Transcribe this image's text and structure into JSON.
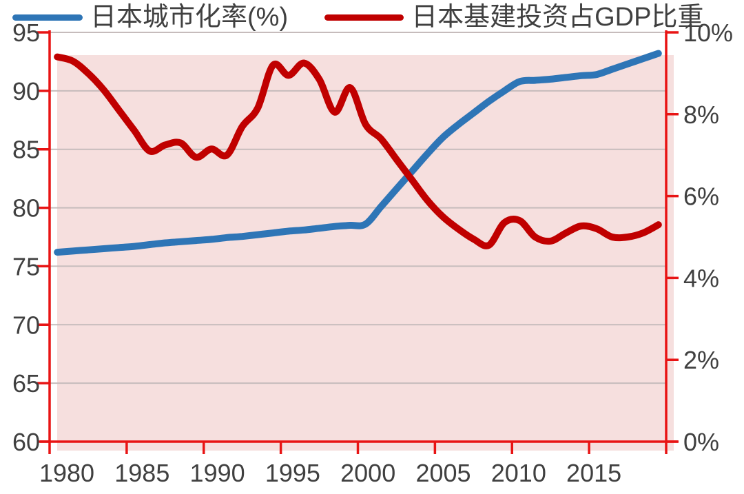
{
  "legend": {
    "items": [
      {
        "label": "日本城市化率(%)",
        "color": "#2E75B6"
      },
      {
        "label": "日本基建投资占GDP比重",
        "color": "#C00000"
      }
    ]
  },
  "chart_data": {
    "type": "line",
    "x": [
      1980,
      1981,
      1982,
      1983,
      1984,
      1985,
      1986,
      1987,
      1988,
      1989,
      1990,
      1991,
      1992,
      1993,
      1994,
      1995,
      1996,
      1997,
      1998,
      1999,
      2000,
      2001,
      2002,
      2003,
      2004,
      2005,
      2006,
      2007,
      2008,
      2009,
      2010,
      2011,
      2012,
      2013,
      2014,
      2015,
      2016,
      2017,
      2018,
      2019
    ],
    "series": [
      {
        "name": "日本城市化率(%)",
        "axis": "left",
        "color": "#2E75B6",
        "values": [
          76.2,
          76.3,
          76.4,
          76.5,
          76.6,
          76.7,
          76.85,
          77.0,
          77.1,
          77.2,
          77.3,
          77.45,
          77.55,
          77.7,
          77.85,
          78.0,
          78.1,
          78.25,
          78.4,
          78.5,
          78.6,
          80.1,
          81.6,
          83.1,
          84.6,
          86.0,
          87.1,
          88.1,
          89.1,
          90.0,
          90.8,
          90.9,
          91.0,
          91.15,
          91.3,
          91.4,
          91.85,
          92.3,
          92.75,
          93.2
        ]
      },
      {
        "name": "日本基建投资占GDP比重",
        "axis": "right",
        "color": "#C00000",
        "values": [
          9.4,
          9.3,
          9.0,
          8.6,
          8.1,
          7.6,
          7.1,
          7.25,
          7.3,
          6.95,
          7.15,
          7.0,
          7.7,
          8.15,
          9.2,
          8.95,
          9.25,
          8.85,
          8.05,
          8.65,
          7.75,
          7.4,
          6.9,
          6.4,
          5.9,
          5.5,
          5.2,
          4.95,
          4.8,
          5.35,
          5.4,
          5.0,
          4.9,
          5.1,
          5.27,
          5.2,
          5.0,
          5.0,
          5.1,
          5.3
        ]
      }
    ],
    "left_axis": {
      "range": [
        60,
        95
      ],
      "ticks": [
        95,
        90,
        85,
        80,
        75,
        70,
        65,
        60
      ]
    },
    "right_axis": {
      "range": [
        0,
        10
      ],
      "ticks": [
        10,
        8,
        6,
        4,
        2,
        0
      ],
      "tick_labels": [
        "10%",
        "8%",
        "6%",
        "4%",
        "2%",
        "0%"
      ]
    },
    "x_axis": {
      "range": [
        1980,
        2020
      ],
      "tick_interval": 5,
      "tick_labels": [
        "1980",
        "1985",
        "1990",
        "1995",
        "2000",
        "2005",
        "2010",
        "2015"
      ]
    },
    "grid": "horizontal-only",
    "legend_position": "top",
    "colors": {
      "axis_red": "#E81414",
      "plot_background": "#F6DFDE",
      "gridline": "#C6BCBC",
      "tick_label": "#404040"
    }
  }
}
